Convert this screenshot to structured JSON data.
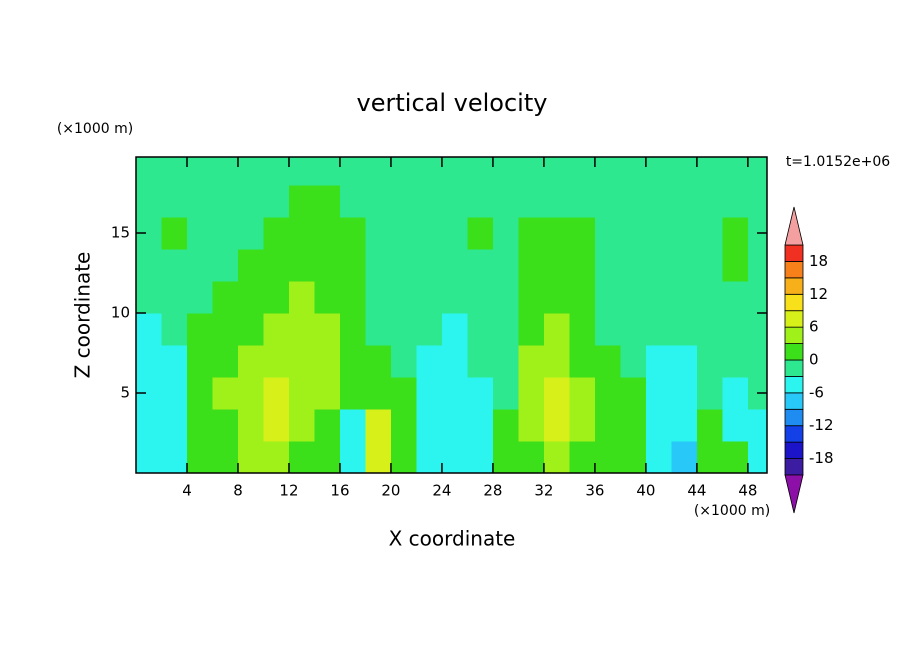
{
  "chart_data": {
    "type": "contour",
    "title": "vertical velocity",
    "x_label": "X coordinate",
    "y_label": "Z coordinate",
    "x_unit": "(×1000 m)",
    "y_unit": "(×1000 m)",
    "annotation": "t=1.0152e+06",
    "xlim": [
      0,
      49.5
    ],
    "ylim": [
      0,
      19.75
    ],
    "xticks": [
      4,
      8,
      12,
      16,
      20,
      24,
      28,
      32,
      36,
      40,
      44,
      48
    ],
    "yticks": [
      5,
      10,
      15
    ],
    "x": [
      1,
      3,
      5,
      7,
      9,
      11,
      13,
      15,
      17,
      19,
      21,
      23,
      25,
      27,
      29,
      31,
      33,
      35,
      37,
      39,
      41,
      43,
      45,
      47,
      49
    ],
    "z": [
      1,
      3,
      5,
      7,
      9,
      11,
      13,
      15,
      17,
      19
    ],
    "z_values": [
      [
        -4.5,
        -4.5,
        1.5,
        1.5,
        4.5,
        4.5,
        1.5,
        1.5,
        -4.5,
        7.5,
        1.5,
        -4.5,
        -4.5,
        -4.5,
        1.5,
        1.5,
        4.5,
        1.5,
        1.5,
        1.5,
        -4.5,
        -7.5,
        1.5,
        1.5,
        -4.5
      ],
      [
        -4.5,
        -4.5,
        1.5,
        1.5,
        4.5,
        7.5,
        4.5,
        1.5,
        -4.5,
        7.5,
        1.5,
        -4.5,
        -4.5,
        -4.5,
        1.5,
        4.5,
        7.5,
        4.5,
        1.5,
        1.5,
        -4.5,
        -4.5,
        1.5,
        -4.5,
        -4.5
      ],
      [
        -4.5,
        -4.5,
        1.5,
        4.5,
        4.5,
        7.5,
        4.5,
        4.5,
        1.5,
        1.5,
        1.5,
        -4.5,
        -4.5,
        -4.5,
        -1,
        4.5,
        7.5,
        4.5,
        1.5,
        1.5,
        -4.5,
        -4.5,
        -1,
        -4.5,
        -1
      ],
      [
        -4.5,
        -4.5,
        1.5,
        1.5,
        4.5,
        4.5,
        4.5,
        4.5,
        1.5,
        1.5,
        -1,
        -4.5,
        -4.5,
        -1,
        -1,
        4.5,
        4.5,
        1.5,
        1.5,
        -1,
        -4.5,
        -4.5,
        -1,
        -1,
        -1
      ],
      [
        -4.5,
        -1,
        1.5,
        1.5,
        1.5,
        4.5,
        4.5,
        4.5,
        1.5,
        -1,
        -1,
        -1,
        -4.5,
        -1,
        -1,
        1.5,
        4.5,
        1.5,
        -1,
        -1,
        -1,
        -1,
        -1,
        -1,
        -1
      ],
      [
        -1,
        -1,
        -1,
        1.5,
        1.5,
        1.5,
        4.5,
        1.5,
        1.5,
        -1,
        -1,
        -1,
        -1,
        -1,
        -1,
        1.5,
        1.5,
        1.5,
        -1,
        -1,
        -1,
        -1,
        -1,
        -1,
        -1
      ],
      [
        -1,
        -1,
        -1,
        -1,
        1.5,
        1.5,
        1.5,
        1.5,
        1.5,
        -1,
        -1,
        -1,
        -1,
        -1,
        -1,
        1.5,
        1.5,
        1.5,
        -1,
        -1,
        -1,
        -1,
        -1,
        1.5,
        -1
      ],
      [
        -1,
        1.5,
        -1,
        -1,
        -1,
        1.5,
        1.5,
        1.5,
        1.5,
        -1,
        -1,
        -1,
        -1,
        1.5,
        -1,
        1.5,
        1.5,
        1.5,
        -1,
        -1,
        -1,
        -1,
        -1,
        1.5,
        -1
      ],
      [
        -1,
        -1,
        -1,
        -1,
        -1,
        -1,
        1.5,
        1.5,
        -1,
        -1,
        -1,
        -1,
        -1,
        -1,
        -1,
        -1,
        -1,
        -1,
        -1,
        -1,
        -1,
        -1,
        -1,
        -1,
        -1
      ],
      [
        -1,
        -1,
        -1,
        -1,
        -1,
        -1,
        -1,
        -1,
        -1,
        -1,
        -1,
        -1,
        -1,
        -1,
        -1,
        -1,
        -1,
        -1,
        -1,
        -1,
        -1,
        -1,
        -1,
        -1,
        -1
      ]
    ],
    "colorbar": {
      "levels": [
        -21,
        -18,
        -15,
        -12,
        -9,
        -6,
        -3,
        0,
        3,
        6,
        9,
        12,
        15,
        18,
        21
      ],
      "colors": [
        "#3c1ca0",
        "#1c14c8",
        "#1440e8",
        "#1e8cf0",
        "#28c8f8",
        "#2cf5f0",
        "#2ee88f",
        "#3ce01a",
        "#a0f01a",
        "#d8f01a",
        "#f8e01a",
        "#f8b01a",
        "#f8801a",
        "#f03020"
      ],
      "under_color": "#8c0fa8",
      "over_color": "#f4a0a0",
      "ticks": [
        -18,
        -12,
        -6,
        0,
        6,
        12,
        18
      ]
    }
  }
}
